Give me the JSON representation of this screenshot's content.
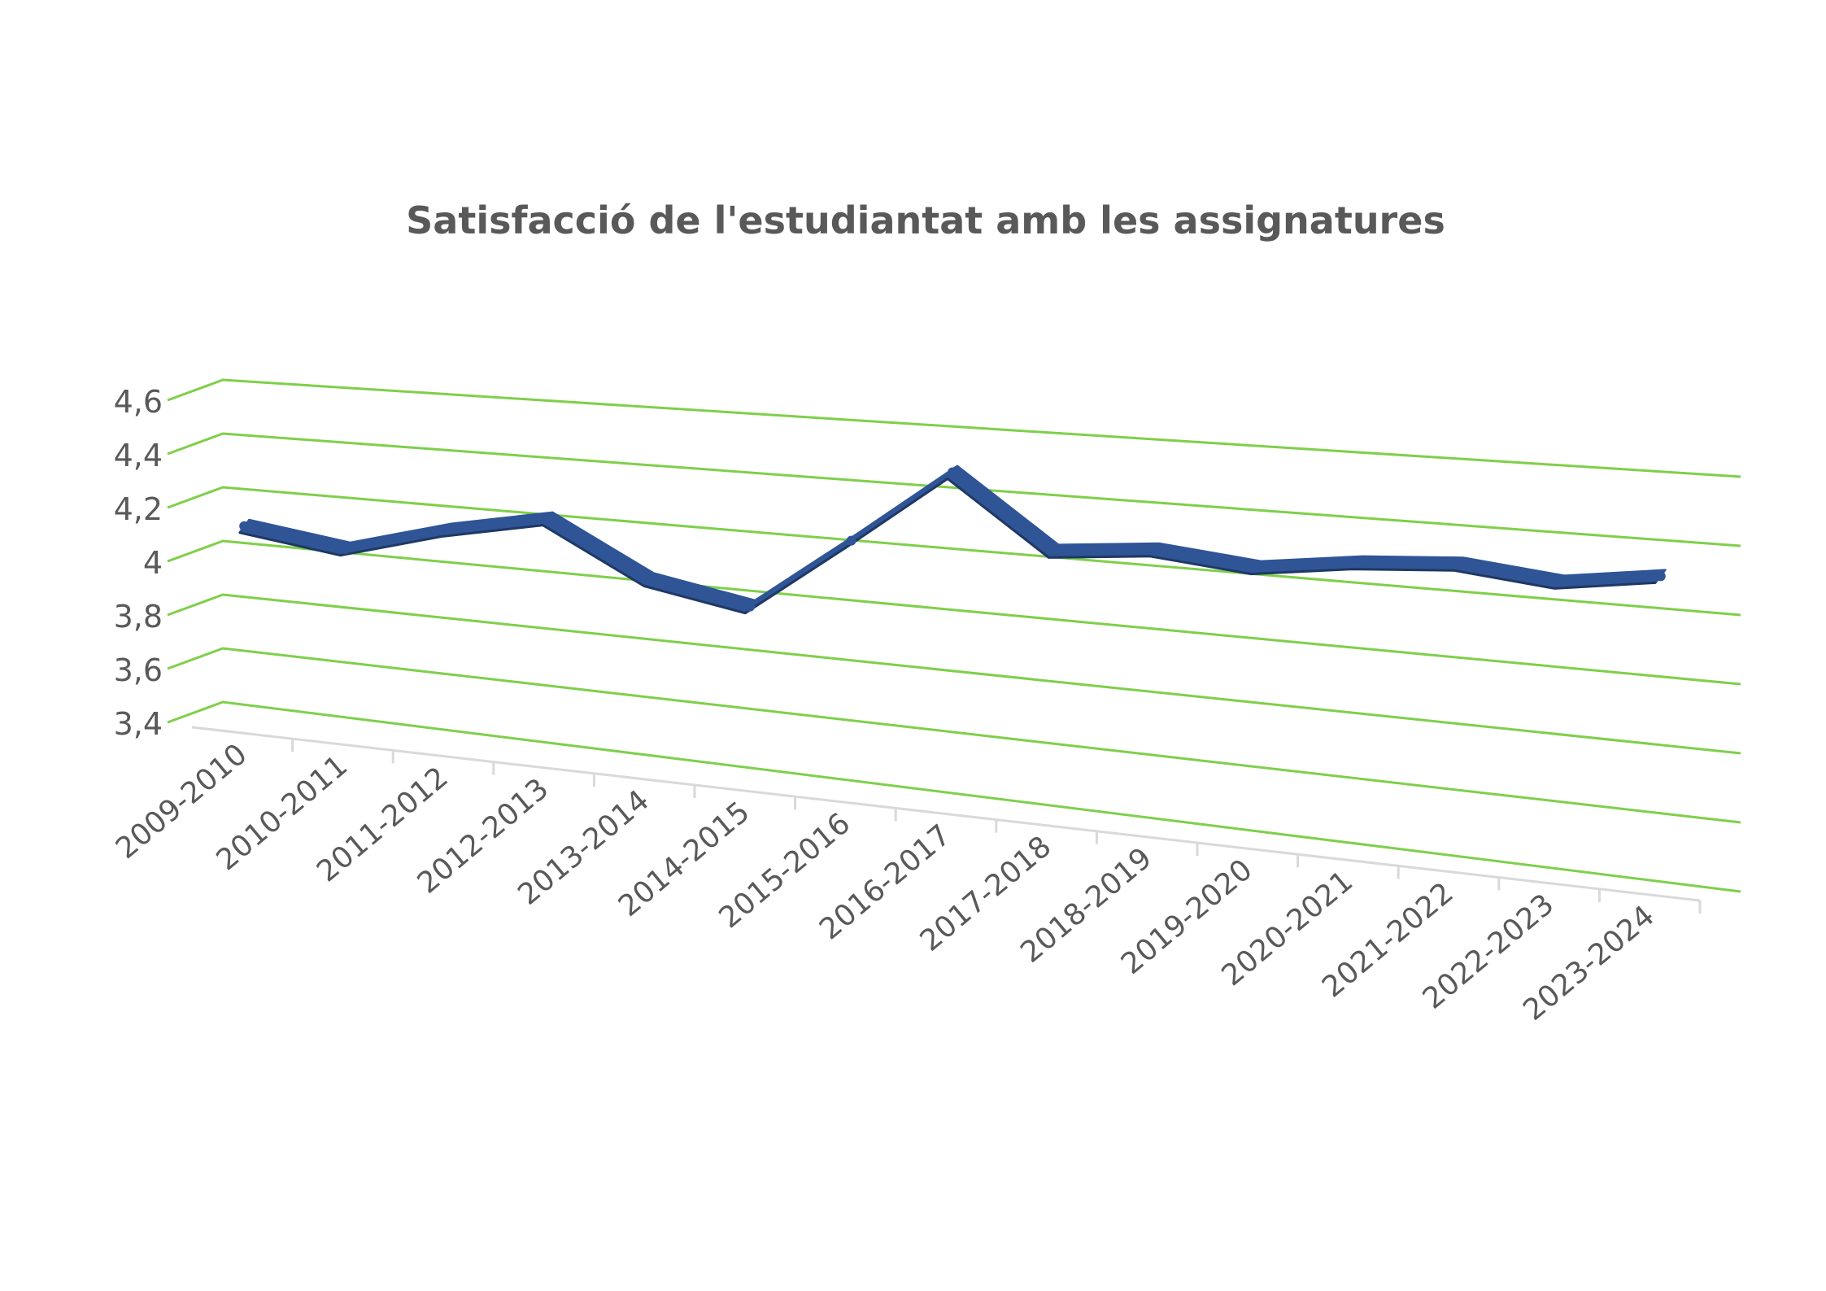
{
  "chart_data": {
    "type": "line",
    "title": "Satisfacció de l'estudiantat amb les assignatures",
    "categories": [
      "2009-2010",
      "2010-2011",
      "2011-2012",
      "2012-2013",
      "2013-2014",
      "2014-2015",
      "2015-2016",
      "2016-2017",
      "2017-2018",
      "2018-2019",
      "2019-2020",
      "2020-2021",
      "2021-2022",
      "2022-2023",
      "2023-2024"
    ],
    "series": [
      {
        "values": [
          4.11,
          4.06,
          4.16,
          4.23,
          4.05,
          3.99,
          4.24,
          4.49,
          4.26,
          4.29,
          4.26,
          4.3,
          4.32,
          4.29,
          4.33
        ]
      }
    ],
    "ylim": [
      3.4,
      4.6
    ],
    "y_ticks": [
      "3,4",
      "3,6",
      "3,8",
      "4",
      "4,2",
      "4,4",
      "4,6"
    ],
    "y_tick_values": [
      3.4,
      3.6,
      3.8,
      4.0,
      4.2,
      4.4,
      4.6
    ],
    "style": "3d-line",
    "grid": true,
    "legend": "none",
    "colors": {
      "series": "#2f5597",
      "series_edge": "#1f3864",
      "grid": "#7fcf4a",
      "axis": "#d9d9d9",
      "text": "#595959"
    }
  }
}
